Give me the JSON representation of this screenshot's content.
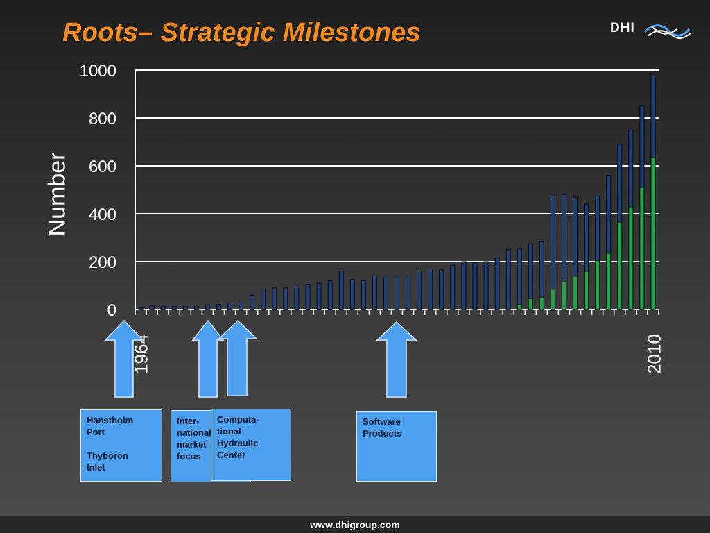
{
  "header": {
    "title": "Roots– Strategic Milestones",
    "logo_text": "DHI"
  },
  "footer": {
    "url": "www.dhigroup.com"
  },
  "colors": {
    "title": "#f28a1f",
    "bar_total": "#1e3f7a",
    "bar_green": "#1fa84a",
    "gridline": "#ffffff",
    "callout_box": "#4d9ff0"
  },
  "chart_data": {
    "type": "bar",
    "stacked": true,
    "title": "",
    "xlabel": "",
    "ylabel": "Number",
    "ylim": [
      0,
      1000
    ],
    "yticks": [
      0,
      200,
      400,
      600,
      800,
      1000
    ],
    "grid": true,
    "x_start_label": "1964",
    "x_end_label": "2010",
    "categories": [
      "1964",
      "1965",
      "1966",
      "1967",
      "1968",
      "1969",
      "1970",
      "1971",
      "1972",
      "1973",
      "1974",
      "1975",
      "1976",
      "1977",
      "1978",
      "1979",
      "1980",
      "1981",
      "1982",
      "1983",
      "1984",
      "1985",
      "1986",
      "1987",
      "1988",
      "1989",
      "1990",
      "1991",
      "1992",
      "1993",
      "1994",
      "1995",
      "1996",
      "1997",
      "1998",
      "1999",
      "2000",
      "2001",
      "2002",
      "2003",
      "2004",
      "2005",
      "2006",
      "2007",
      "2008",
      "2009",
      "2010"
    ],
    "series": [
      {
        "values": [
          0,
          0,
          0,
          0,
          0,
          0,
          0,
          0,
          0,
          0,
          0,
          0,
          0,
          0,
          0,
          0,
          0,
          0,
          0,
          0,
          0,
          0,
          0,
          0,
          0,
          0,
          0,
          0,
          0,
          0,
          0,
          0,
          0,
          0,
          20,
          45,
          50,
          85,
          115,
          140,
          160,
          205,
          235,
          365,
          430,
          510,
          635
        ]
      },
      {
        "values": [
          8,
          15,
          12,
          12,
          12,
          12,
          20,
          22,
          28,
          35,
          60,
          85,
          90,
          90,
          95,
          105,
          110,
          120,
          160,
          125,
          120,
          140,
          140,
          140,
          140,
          160,
          170,
          165,
          185,
          200,
          195,
          200,
          218,
          250,
          235,
          230,
          235,
          390,
          365,
          330,
          280,
          270,
          325,
          325,
          320,
          340,
          340
        ]
      }
    ],
    "totals": [
      8,
      15,
      12,
      12,
      12,
      12,
      20,
      22,
      28,
      35,
      60,
      85,
      90,
      90,
      95,
      105,
      110,
      120,
      160,
      125,
      120,
      140,
      140,
      140,
      140,
      160,
      170,
      165,
      185,
      200,
      195,
      200,
      218,
      250,
      255,
      275,
      285,
      475,
      480,
      470,
      440,
      475,
      560,
      690,
      750,
      850,
      975
    ]
  },
  "milestones": [
    {
      "text": "Hanstholm\nPort\n\nThyboron\nInlet"
    },
    {
      "text": "Inter-\nnational\nmarket\nfocus"
    },
    {
      "text": "Computa-\ntional\nHydraulic\nCenter"
    },
    {
      "text": "Software\nProducts"
    }
  ]
}
